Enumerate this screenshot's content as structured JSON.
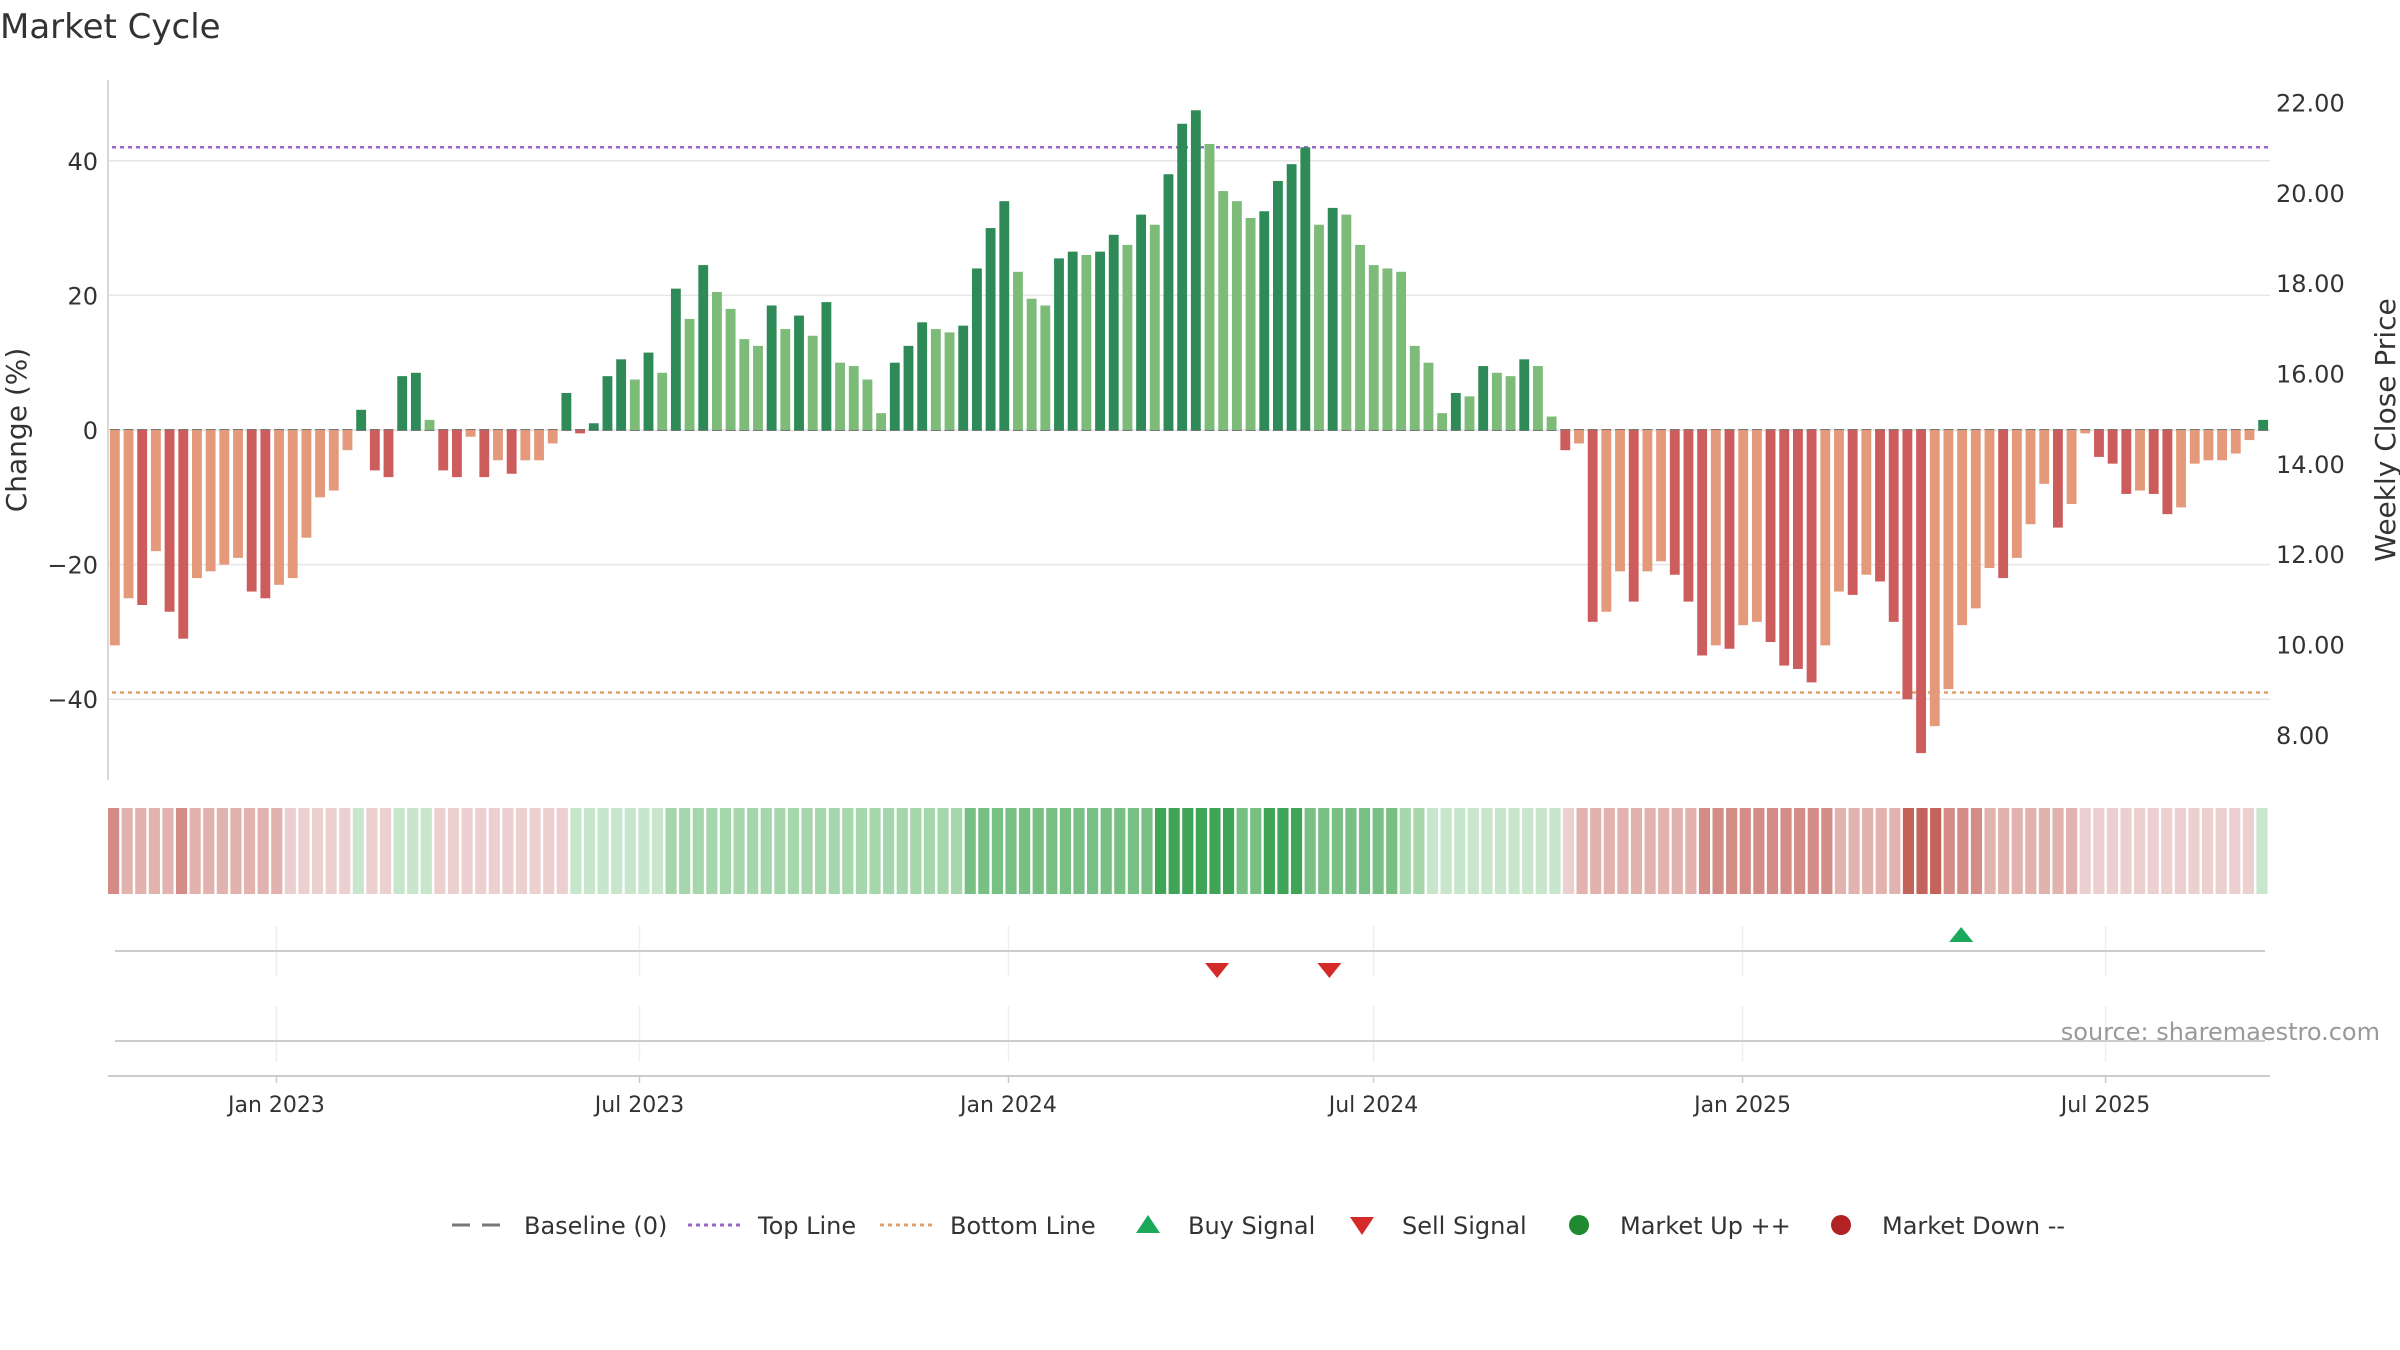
{
  "chart_data": {
    "type": "bar",
    "title": "Market Cycle",
    "ylabel_left": "Change (%)",
    "ylabel_right": "Weekly Close Price",
    "source": "source: sharemaestro.com",
    "y_left": {
      "range": [
        -52,
        52
      ],
      "ticks": [
        40,
        20,
        0,
        -20,
        -40
      ],
      "tick_labels": [
        "40",
        "20",
        "0",
        "−20",
        "−40"
      ]
    },
    "y_right": {
      "range": [
        7.0,
        22.5
      ],
      "ticks": [
        22,
        20,
        18,
        16,
        14,
        12,
        10,
        8
      ],
      "tick_labels": [
        "22.00",
        "20.00",
        "18.00",
        "16.00",
        "14.00",
        "12.00",
        "10.00",
        "8.00"
      ]
    },
    "x_axis": {
      "start": "2022-10-09",
      "end": "2025-09-21",
      "ticks": [
        "2023-01-01",
        "2023-07-01",
        "2024-01-01",
        "2024-07-01",
        "2025-01-01",
        "2025-07-01"
      ],
      "tick_labels": [
        "Jan 2023",
        "Jul 2023",
        "Jan 2024",
        "Jul 2024",
        "Jan 2025",
        "Jul 2025"
      ]
    },
    "reference_lines": {
      "baseline": 0,
      "top_line": 42,
      "bottom_line": -39
    },
    "first_week": "2022-10-09",
    "series": [
      {
        "name": "Change (%)",
        "values": [
          -32,
          -25,
          -26,
          -18,
          -27,
          -31,
          -22,
          -21,
          -20,
          -19,
          -24,
          -25,
          -23,
          -22,
          -16,
          -10,
          -9,
          -3,
          3,
          -6,
          -7,
          8,
          8.5,
          1.5,
          -6,
          -7,
          -1,
          -7,
          -4.5,
          -6.5,
          -4.5,
          -4.5,
          -2,
          5.5,
          -0.5,
          1,
          8,
          10.5,
          7.5,
          11.5,
          8.5,
          21,
          16.5,
          24.5,
          20.5,
          18,
          13.5,
          12.5,
          18.5,
          15,
          17,
          14,
          19,
          10,
          9.5,
          7.5,
          2.5,
          10,
          12.5,
          16,
          15,
          14.5,
          15.5,
          24,
          30,
          34,
          23.5,
          19.5,
          18.5,
          25.5,
          26.5,
          26,
          26.5,
          29,
          27.5,
          32,
          30.5,
          38,
          45.5,
          47.5,
          42.5,
          35.5,
          34,
          31.5,
          32.5,
          37,
          39.5,
          42,
          30.5,
          33,
          32,
          27.5,
          24.5,
          24,
          23.5,
          12.5,
          10,
          2.5,
          5.5,
          5,
          9.5,
          8.5,
          8,
          10.5,
          9.5,
          2,
          -3,
          -2,
          -28.5,
          -27,
          -21,
          -25.5,
          -21,
          -19.5,
          -21.5,
          -25.5,
          -33.5,
          -32,
          -32.5,
          -29,
          -28.5,
          -31.5,
          -35,
          -35.5,
          -37.5,
          -32,
          -24,
          -24.5,
          -21.5,
          -22.5,
          -28.5,
          -40,
          -48,
          -44,
          -38.5,
          -29,
          -26.5,
          -20.5,
          -22,
          -19,
          -14,
          -8,
          -14.5,
          -11,
          -0.5,
          -4,
          -5,
          -9.5,
          -9,
          -9.5,
          -12.5,
          -11.5,
          -5,
          -4.5,
          -4.5,
          -3.5,
          -1.5,
          1.5
        ]
      }
    ],
    "heat_strip": {
      "levels": [
        -3,
        -2,
        -2,
        -2,
        -2,
        -3,
        -2,
        -2,
        -2,
        -2,
        -2,
        -2,
        -2,
        -1,
        -1,
        -1,
        -1,
        -1,
        1,
        -1,
        -1,
        1,
        1,
        1,
        -1,
        -1,
        -1,
        -1,
        -1,
        -1,
        -1,
        -1,
        -1,
        -1,
        1,
        1,
        1,
        1,
        1,
        1,
        1,
        2,
        2,
        2,
        2,
        2,
        2,
        2,
        2,
        2,
        2,
        2,
        2,
        2,
        2,
        2,
        2,
        2,
        2,
        2,
        2,
        2,
        2,
        3,
        3,
        3,
        3,
        3,
        3,
        3,
        3,
        3,
        3,
        3,
        3,
        3,
        3,
        4,
        4,
        4,
        4,
        4,
        4,
        3,
        3,
        4,
        4,
        4,
        3,
        3,
        3,
        3,
        3,
        3,
        3,
        2,
        2,
        1,
        1,
        1,
        1,
        1,
        1,
        1,
        1,
        1,
        1,
        -1,
        -2,
        -2,
        -2,
        -2,
        -2,
        -2,
        -2,
        -2,
        -2,
        -3,
        -3,
        -3,
        -3,
        -3,
        -3,
        -3,
        -3,
        -3,
        -3,
        -2,
        -2,
        -2,
        -2,
        -2,
        -4,
        -4,
        -4,
        -3,
        -3,
        -3,
        -2,
        -2,
        -2,
        -2,
        -2,
        -2,
        -2,
        -1,
        -1,
        -1,
        -1,
        -1,
        -1,
        -1,
        -1,
        -1,
        -1,
        -1,
        -1,
        -1,
        1
      ]
    },
    "signals": {
      "buy": [
        "2025-04-20"
      ],
      "sell": [
        "2024-04-14",
        "2024-06-09"
      ]
    },
    "colors": {
      "up_dark": "#2e8b57",
      "up_light": "#7dbb79",
      "down_dark": "#cd5c5c",
      "down_light": "#e49a7a",
      "top_line": "#9966cc",
      "bottom_line": "#e4a06a",
      "baseline": "#777777",
      "buy": "#1aa85a",
      "sell": "#d42a2a",
      "market_up": "#1f8a2f",
      "market_down": "#b22222"
    },
    "legend": {
      "position": "bottom-center",
      "items": [
        {
          "label": "Baseline (0)",
          "symbol": "dash",
          "color": "#777777"
        },
        {
          "label": "Top Line",
          "symbol": "dot-line",
          "color": "#9966cc"
        },
        {
          "label": "Bottom Line",
          "symbol": "dot-line",
          "color": "#e4a06a"
        },
        {
          "label": "Buy Signal",
          "symbol": "triangle-up",
          "color": "#1aa85a"
        },
        {
          "label": "Sell Signal",
          "symbol": "triangle-down",
          "color": "#d42a2a"
        },
        {
          "label": "Market Up ++",
          "symbol": "circle",
          "color": "#1f8a2f"
        },
        {
          "label": "Market Down --",
          "symbol": "circle",
          "color": "#b22222"
        }
      ]
    },
    "grid": true
  }
}
